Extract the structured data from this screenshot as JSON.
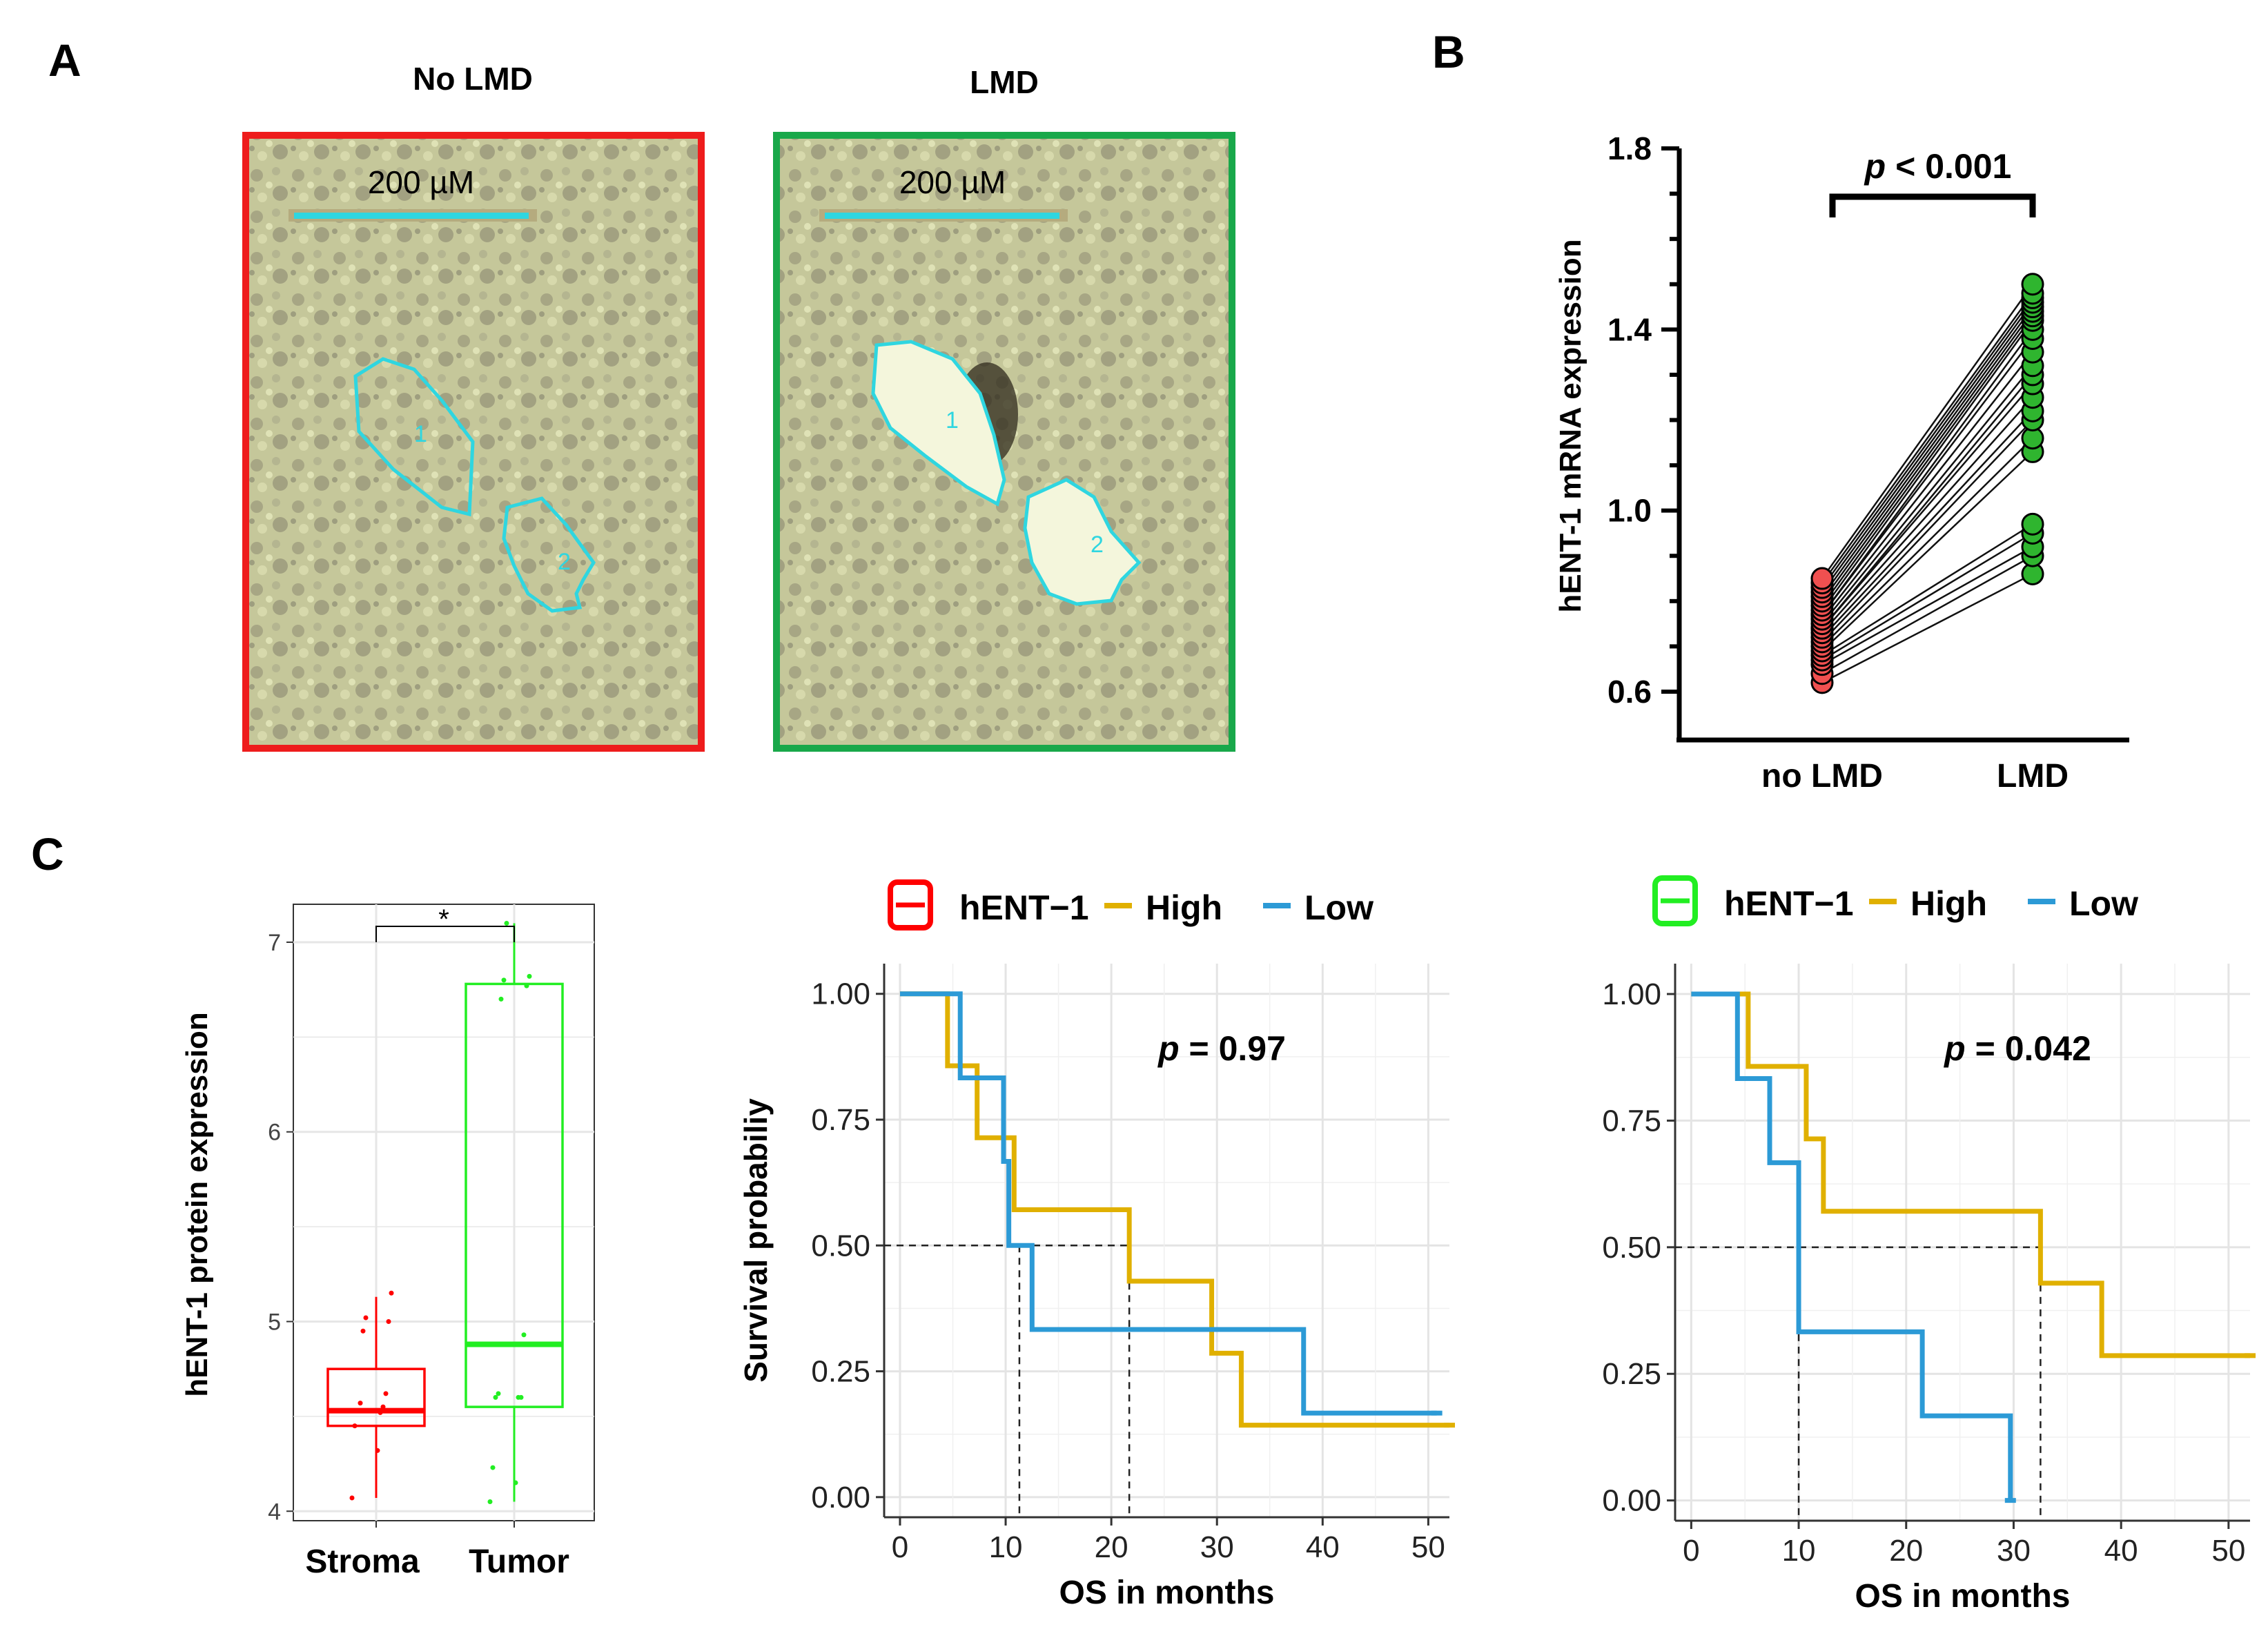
{
  "panel_letters": {
    "a": "A",
    "b": "B",
    "c": "C"
  },
  "panel_a": {
    "left_title": "No LMD",
    "right_title": "LMD",
    "scale_label": "200 µM",
    "region_labels": [
      "1",
      "2"
    ],
    "colors": {
      "no_lmd_frame": "#ee1c1c",
      "lmd_frame": "#19a84a",
      "outline": "#2fd6e0"
    }
  },
  "chart_data": [
    {
      "id": "B",
      "type": "scatter",
      "subtype": "paired-dot-plot",
      "categories": [
        "no LMD",
        "LMD"
      ],
      "ylabel": "hENT-1 mRNA expression",
      "ylim": [
        0.6,
        1.8
      ],
      "yticks": [
        0.6,
        1.0,
        1.4,
        1.8
      ],
      "annotation": {
        "pre": "p",
        "post": " < 0.001"
      },
      "colors": {
        "no LMD": "#f05050",
        "LMD": "#2fb52f"
      },
      "pairs": [
        [
          0.62,
          0.86
        ],
        [
          0.64,
          0.9
        ],
        [
          0.66,
          0.92
        ],
        [
          0.67,
          0.95
        ],
        [
          0.68,
          0.97
        ],
        [
          0.69,
          1.13
        ],
        [
          0.7,
          1.16
        ],
        [
          0.71,
          1.2
        ],
        [
          0.72,
          1.22
        ],
        [
          0.73,
          1.25
        ],
        [
          0.74,
          1.28
        ],
        [
          0.74,
          1.3
        ],
        [
          0.75,
          1.32
        ],
        [
          0.76,
          1.35
        ],
        [
          0.77,
          1.38
        ],
        [
          0.77,
          1.4
        ],
        [
          0.78,
          1.42
        ],
        [
          0.79,
          1.43
        ],
        [
          0.8,
          1.44
        ],
        [
          0.81,
          1.45
        ],
        [
          0.82,
          1.46
        ],
        [
          0.83,
          1.47
        ],
        [
          0.84,
          1.48
        ],
        [
          0.85,
          1.5
        ]
      ]
    },
    {
      "id": "C1",
      "type": "box",
      "categories": [
        "Stroma",
        "Tumor"
      ],
      "ylabel": "hENT-1 protein expression",
      "ylim": [
        3.95,
        7.2
      ],
      "yticks": [
        4,
        5,
        6,
        7
      ],
      "annotation": "*",
      "boxes": [
        {
          "name": "Stroma",
          "color": "#ff0000",
          "min": 4.07,
          "q1": 4.45,
          "median": 4.53,
          "q3": 4.75,
          "max": 5.13,
          "points": [
            4.07,
            4.32,
            4.45,
            4.52,
            4.53,
            4.55,
            4.57,
            4.62,
            4.95,
            5.0,
            5.02,
            5.15
          ]
        },
        {
          "name": "Tumor",
          "color": "#22ee22",
          "min": 4.05,
          "q1": 4.55,
          "median": 4.88,
          "q3": 6.78,
          "max": 7.1,
          "points": [
            4.05,
            4.15,
            4.23,
            4.6,
            4.6,
            4.6,
            4.62,
            4.93,
            6.7,
            6.77,
            6.8,
            6.82,
            7.1
          ]
        }
      ]
    },
    {
      "id": "C2",
      "type": "line",
      "subtype": "kaplan-meier",
      "legend": {
        "title": "hENT−1",
        "entries": [
          "High",
          "Low"
        ],
        "icon_color": "#ff0000",
        "placement": "top"
      },
      "xlabel": "OS in months",
      "ylabel": "Survival probabiliy",
      "xlim": [
        -1.5,
        52
      ],
      "ylim": [
        -0.04,
        1.06
      ],
      "xticks": [
        0,
        10,
        20,
        30,
        40,
        50
      ],
      "yticks": [
        "0.00",
        "0.25",
        "0.50",
        "0.75",
        "1.00"
      ],
      "pvalue": {
        "pre": "p",
        "post": " = 0.97"
      },
      "medians": [
        11.3,
        21.7
      ],
      "series": [
        {
          "name": "High",
          "color": "#e0b000",
          "steps": [
            [
              0,
              1.0
            ],
            [
              4.5,
              0.857
            ],
            [
              7.3,
              0.714
            ],
            [
              10.8,
              0.571
            ],
            [
              21.7,
              0.429
            ],
            [
              29.5,
              0.286
            ],
            [
              32.3,
              0.143
            ],
            [
              52,
              0.143
            ]
          ]
        },
        {
          "name": "Low",
          "color": "#2c9ad6",
          "steps": [
            [
              0,
              1.0
            ],
            [
              5.7,
              0.833
            ],
            [
              9.8,
              0.667
            ],
            [
              10.3,
              0.5
            ],
            [
              12.5,
              0.333
            ],
            [
              38.2,
              0.167
            ],
            [
              50.8,
              0.167
            ]
          ]
        }
      ]
    },
    {
      "id": "C3",
      "type": "line",
      "subtype": "kaplan-meier",
      "legend": {
        "title": "hENT−1",
        "entries": [
          "High",
          "Low"
        ],
        "icon_color": "#22ee22",
        "placement": "top"
      },
      "xlabel": "OS in months",
      "ylabel": "",
      "xlim": [
        -1.5,
        52
      ],
      "ylim": [
        -0.04,
        1.06
      ],
      "xticks": [
        0,
        10,
        20,
        30,
        40,
        50
      ],
      "yticks": [
        "0.00",
        "0.25",
        "0.50",
        "0.75",
        "1.00"
      ],
      "pvalue": {
        "pre": "p",
        "post": " = 0.042"
      },
      "medians": [
        10.0,
        32.5
      ],
      "series": [
        {
          "name": "High",
          "color": "#e0b000",
          "steps": [
            [
              0,
              1.0
            ],
            [
              5.3,
              0.857
            ],
            [
              10.7,
              0.714
            ],
            [
              12.3,
              0.571
            ],
            [
              32.5,
              0.429
            ],
            [
              38.2,
              0.286
            ],
            [
              52,
              0.286
            ]
          ]
        },
        {
          "name": "Low",
          "color": "#2c9ad6",
          "steps": [
            [
              0,
              1.0
            ],
            [
              4.3,
              0.833
            ],
            [
              7.3,
              0.667
            ],
            [
              10.0,
              0.333
            ],
            [
              21.5,
              0.167
            ],
            [
              29.7,
              0.0
            ]
          ]
        }
      ]
    }
  ]
}
